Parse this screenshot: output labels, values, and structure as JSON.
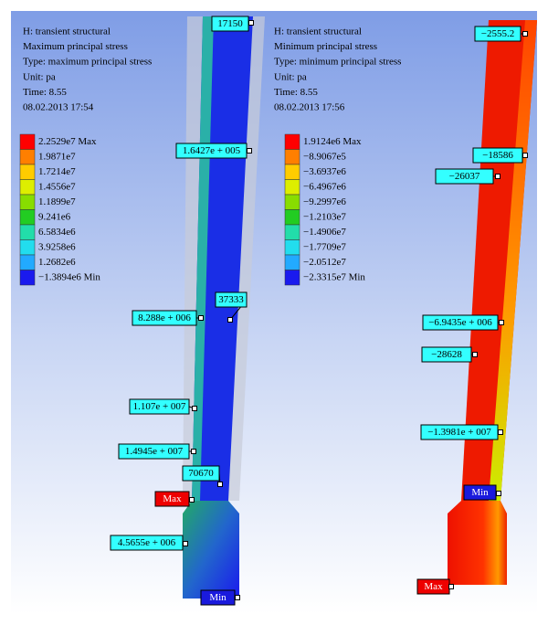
{
  "panels": [
    {
      "header": [
        "H: transient structural",
        "Maximum principal stress",
        "Type: maximum principal stress",
        "Unit: pa",
        "Time: 8.55",
        "08.02.2013 17:54"
      ],
      "legend": [
        {
          "label": "2.2529e7 Max",
          "color": "#ff0000"
        },
        {
          "label": "1.9871e7",
          "color": "#ff7f00"
        },
        {
          "label": "1.7214e7",
          "color": "#ffcc00"
        },
        {
          "label": "1.4556e7",
          "color": "#ddee00"
        },
        {
          "label": "1.1899e7",
          "color": "#88dd00"
        },
        {
          "label": "9.241e6",
          "color": "#22cc22"
        },
        {
          "label": "6.5834e6",
          "color": "#22ddaa"
        },
        {
          "label": "3.9258e6",
          "color": "#22ddee"
        },
        {
          "label": "1.2682e6",
          "color": "#22aaff"
        },
        {
          "label": "−1.3894e6 Min",
          "color": "#1a1aee"
        }
      ],
      "probes": [
        "17150",
        "1.6427e + 005",
        "37333",
        "8.288e + 006",
        "1.107e + 007",
        "1.4945e + 007",
        "70670",
        "Max",
        "4.5655e + 006",
        "Min"
      ]
    },
    {
      "header": [
        "H: transient structural",
        "Minimum principal stress",
        "Type: minimum principal stress",
        "Unit: pa",
        "Time: 8.55",
        "08.02.2013 17:56"
      ],
      "legend": [
        {
          "label": "1.9124e6 Max",
          "color": "#ff0000"
        },
        {
          "label": "−8.9067e5",
          "color": "#ff7f00"
        },
        {
          "label": "−3.6937e6",
          "color": "#ffcc00"
        },
        {
          "label": "−6.4967e6",
          "color": "#ddee00"
        },
        {
          "label": "−9.2997e6",
          "color": "#88dd00"
        },
        {
          "label": "−1.2103e7",
          "color": "#22cc22"
        },
        {
          "label": "−1.4906e7",
          "color": "#22ddaa"
        },
        {
          "label": "−1.7709e7",
          "color": "#22ddee"
        },
        {
          "label": "−2.0512e7",
          "color": "#22aaff"
        },
        {
          "label": "−2.3315e7 Min",
          "color": "#1a1aee"
        }
      ],
      "probes": [
        "−2555.2",
        "−18586",
        "−26037",
        "−6.9435e + 006",
        "−28628",
        "−1.3981e + 007",
        "Min",
        "Max"
      ]
    }
  ]
}
